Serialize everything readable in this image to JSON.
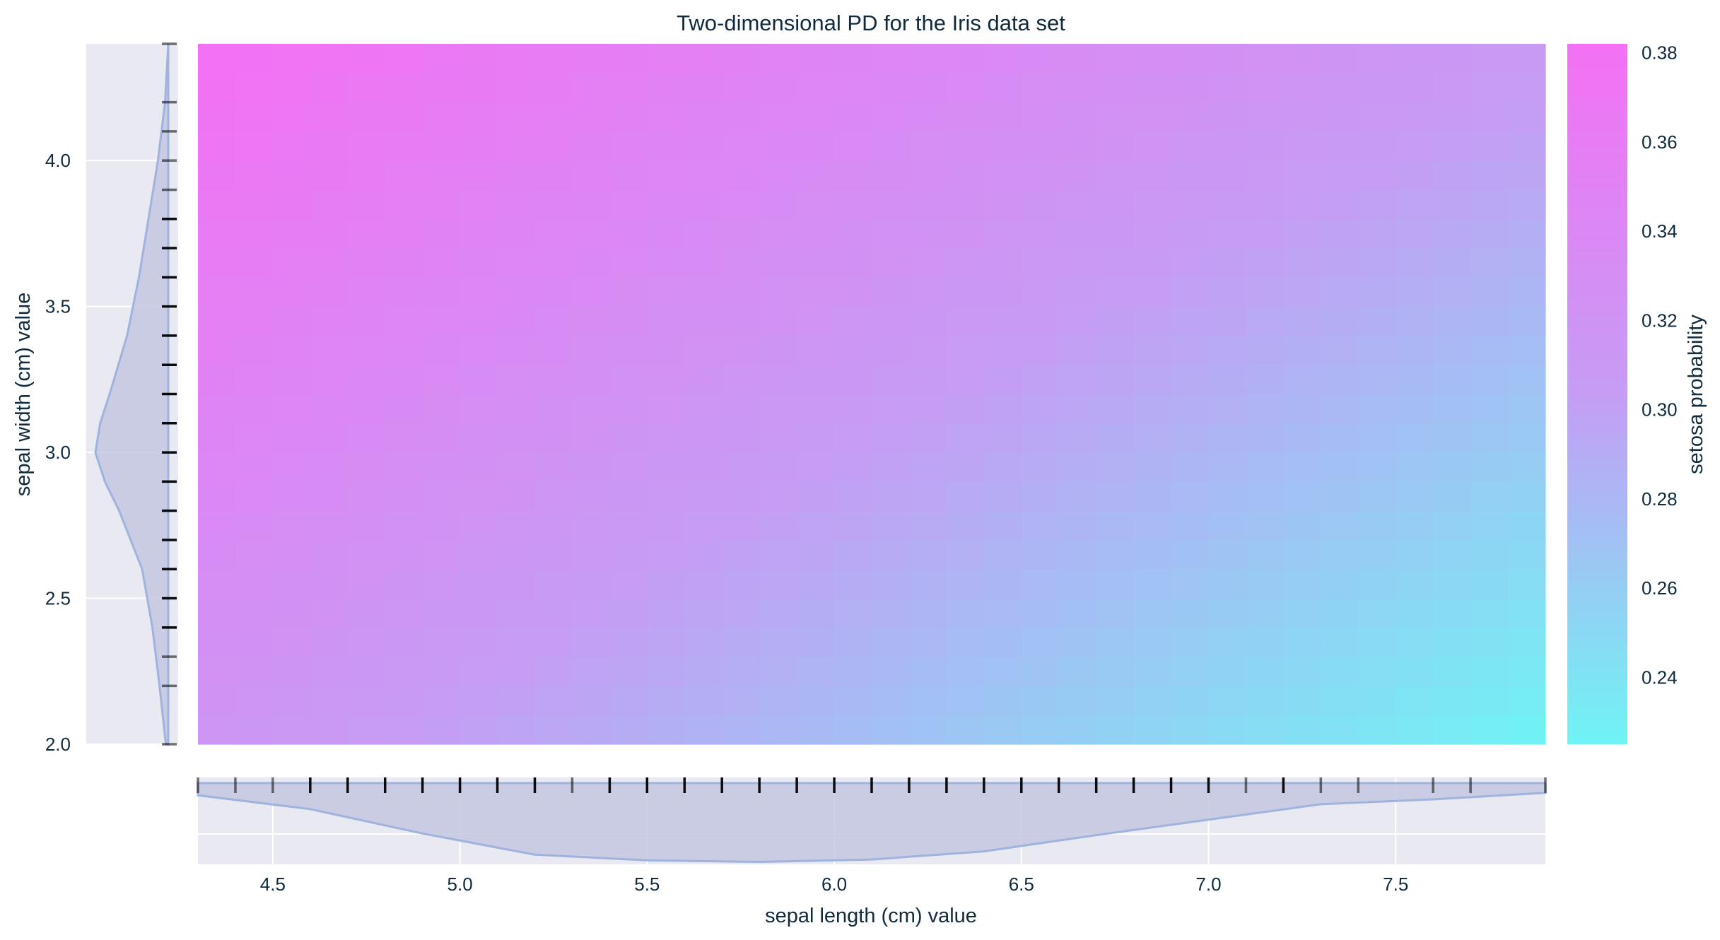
{
  "chart_data": {
    "type": "heatmap",
    "title": "Two-dimensional PD for the Iris data set",
    "xlabel": "sepal length (cm) value",
    "ylabel": "sepal width (cm) value",
    "colorbar_label": "setosa probability",
    "xlim": [
      4.3,
      7.9
    ],
    "ylim": [
      2.0,
      4.4
    ],
    "x_ticks": [
      "4.5",
      "5.0",
      "5.5",
      "6.0",
      "6.5",
      "7.0",
      "7.5"
    ],
    "y_ticks": [
      "2.0",
      "2.5",
      "3.0",
      "3.5",
      "4.0"
    ],
    "colorbar_range": [
      0.225,
      0.382
    ],
    "colorbar_ticks": [
      "0.24",
      "0.26",
      "0.28",
      "0.30",
      "0.32",
      "0.34",
      "0.36",
      "0.38"
    ],
    "colorscale": [
      "#6ff4f4",
      "#c59df4",
      "#f470f4"
    ],
    "corner_values": {
      "low_x_high_y": 0.382,
      "high_x_high_y": 0.31,
      "low_x_low_y": 0.318,
      "high_x_low_y": 0.225
    },
    "x_rug": [
      4.3,
      4.4,
      4.5,
      4.6,
      4.7,
      4.8,
      4.9,
      5.0,
      5.1,
      5.2,
      5.3,
      5.4,
      5.5,
      5.6,
      5.7,
      5.8,
      5.9,
      6.0,
      6.1,
      6.2,
      6.3,
      6.4,
      6.5,
      6.6,
      6.7,
      6.8,
      6.9,
      7.0,
      7.1,
      7.2,
      7.3,
      7.4,
      7.6,
      7.7,
      7.9
    ],
    "y_rug": [
      2.0,
      2.2,
      2.3,
      2.4,
      2.5,
      2.6,
      2.7,
      2.8,
      2.9,
      3.0,
      3.1,
      3.2,
      3.3,
      3.4,
      3.5,
      3.6,
      3.7,
      3.8,
      3.9,
      4.0,
      4.1,
      4.2,
      4.4
    ],
    "x_density": [
      [
        4.3,
        0.15
      ],
      [
        4.6,
        0.32
      ],
      [
        4.9,
        0.62
      ],
      [
        5.2,
        0.88
      ],
      [
        5.5,
        0.95
      ],
      [
        5.8,
        0.97
      ],
      [
        6.1,
        0.94
      ],
      [
        6.4,
        0.84
      ],
      [
        6.7,
        0.64
      ],
      [
        7.0,
        0.45
      ],
      [
        7.3,
        0.26
      ],
      [
        7.6,
        0.2
      ],
      [
        7.9,
        0.12
      ]
    ],
    "y_density": [
      [
        2.0,
        0.03
      ],
      [
        2.2,
        0.11
      ],
      [
        2.4,
        0.2
      ],
      [
        2.6,
        0.33
      ],
      [
        2.8,
        0.62
      ],
      [
        2.9,
        0.8
      ],
      [
        3.0,
        0.92
      ],
      [
        3.1,
        0.86
      ],
      [
        3.2,
        0.74
      ],
      [
        3.4,
        0.52
      ],
      [
        3.6,
        0.37
      ],
      [
        3.8,
        0.25
      ],
      [
        4.0,
        0.13
      ],
      [
        4.2,
        0.04
      ],
      [
        4.4,
        0.0
      ]
    ],
    "grid": true,
    "colors": {
      "panel_bg": "#e8e9f1",
      "density_fill": "#c3c7e0",
      "density_line": "#9fb3de",
      "grid": "#ffffff",
      "text": "#0f2b3d"
    }
  }
}
